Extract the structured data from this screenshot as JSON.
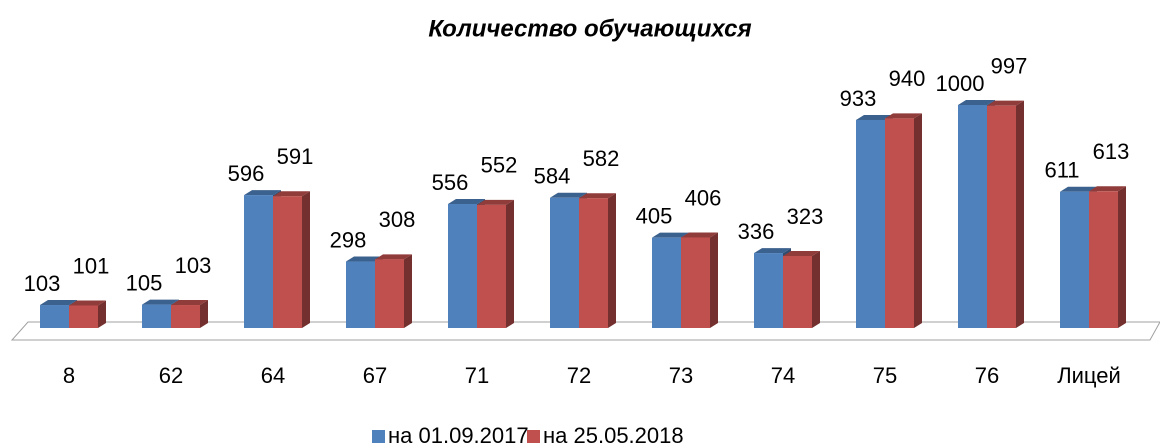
{
  "chart_data": {
    "type": "bar3d",
    "title": "Количество обучающихся",
    "categories": [
      "8",
      "62",
      "64",
      "67",
      "71",
      "72",
      "73",
      "74",
      "75",
      "76",
      "Лицей"
    ],
    "series": [
      {
        "name": "на 01.09.2017",
        "color": "#4f81bd",
        "values": [
          103,
          105,
          596,
          298,
          556,
          584,
          405,
          336,
          933,
          1000,
          611
        ]
      },
      {
        "name": "на 25.05.2018",
        "color": "#c0504d",
        "values": [
          101,
          103,
          591,
          308,
          552,
          582,
          406,
          323,
          940,
          997,
          613
        ]
      }
    ],
    "ylim": [
      0,
      1000
    ]
  }
}
